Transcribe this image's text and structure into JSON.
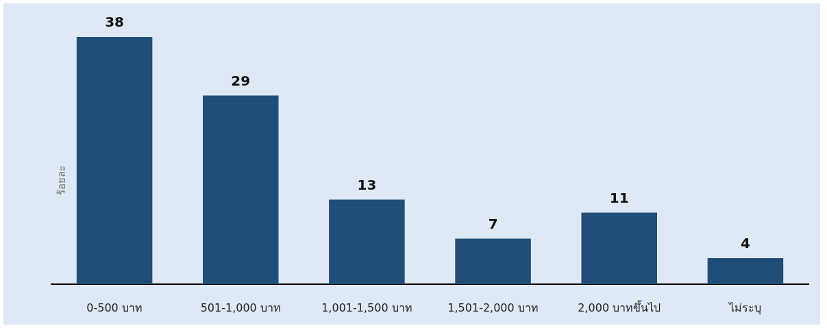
{
  "chart_data": {
    "type": "bar",
    "categories": [
      "0-500 บาท",
      "501-1,000 บาท",
      "1,001-1,500 บาท",
      "1,501-2,000 บาท",
      "2,000 บาทขึ้นไป",
      "ไม่ระบุ"
    ],
    "values": [
      38,
      29,
      13,
      7,
      11,
      4
    ],
    "color": "#1f4e79",
    "ylabel": "ร้อยละ",
    "data_labels": true
  }
}
